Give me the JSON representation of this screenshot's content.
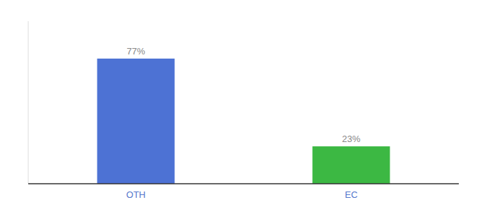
{
  "chart_data": {
    "type": "bar",
    "categories": [
      "OTH",
      "EC"
    ],
    "values": [
      77,
      23
    ],
    "value_labels": [
      "77%",
      "23%"
    ],
    "colors": [
      "#4d72d4",
      "#3cb843"
    ],
    "ylim": [
      0,
      100
    ],
    "data_labels": true,
    "tick_labels": "x"
  }
}
